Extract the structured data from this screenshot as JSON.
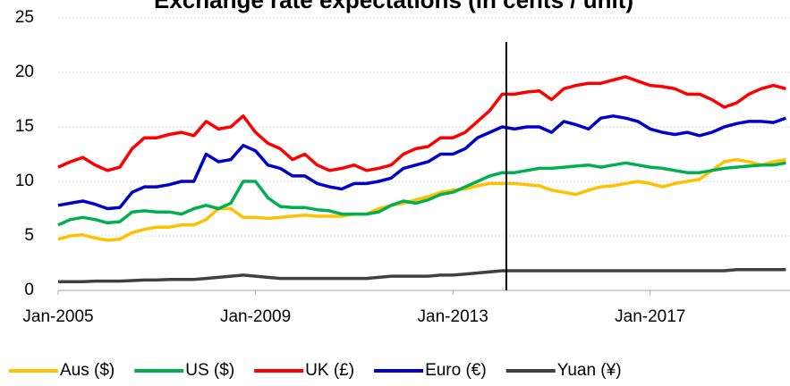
{
  "chart_data": {
    "type": "line",
    "title": "Exchange rate expectations (in cents / unit)",
    "x": [
      "2005-01",
      "2005-04",
      "2005-07",
      "2005-10",
      "2006-01",
      "2006-04",
      "2006-07",
      "2006-10",
      "2007-01",
      "2007-04",
      "2007-07",
      "2007-10",
      "2008-01",
      "2008-04",
      "2008-07",
      "2008-10",
      "2009-01",
      "2009-04",
      "2009-07",
      "2009-10",
      "2010-01",
      "2010-04",
      "2010-07",
      "2010-10",
      "2011-01",
      "2011-04",
      "2011-07",
      "2011-10",
      "2012-01",
      "2012-04",
      "2012-07",
      "2012-10",
      "2013-01",
      "2013-04",
      "2013-07",
      "2013-10",
      "2014-01",
      "2014-04",
      "2014-07",
      "2014-10",
      "2015-01",
      "2015-04",
      "2015-07",
      "2015-10",
      "2016-01",
      "2016-04",
      "2016-07",
      "2016-10",
      "2017-01",
      "2017-04",
      "2017-07",
      "2017-10",
      "2018-01",
      "2018-04",
      "2018-07",
      "2018-10",
      "2019-01",
      "2019-04",
      "2019-07",
      "2019-10"
    ],
    "series": [
      {
        "name": "Aus ($)",
        "color": "#ffc000",
        "values": [
          4.7,
          5,
          5.1,
          4.8,
          4.6,
          4.7,
          5.3,
          5.6,
          5.8,
          5.8,
          6,
          6,
          6.5,
          7.5,
          7.5,
          6.7,
          6.7,
          6.6,
          6.7,
          6.8,
          6.9,
          6.8,
          6.8,
          6.8,
          7,
          7,
          7.5,
          7.8,
          8,
          8.3,
          8.6,
          9,
          9.2,
          9.3,
          9.6,
          9.8,
          9.8,
          9.8,
          9.7,
          9.6,
          9.2,
          9,
          8.8,
          9.2,
          9.5,
          9.6,
          9.8,
          10,
          9.8,
          9.5,
          9.8,
          10,
          10.2,
          11,
          11.8,
          12,
          11.8,
          11.5,
          11.8,
          12
        ]
      },
      {
        "name": "US ($)",
        "color": "#00b050",
        "values": [
          6,
          6.5,
          6.7,
          6.5,
          6.2,
          6.3,
          7.2,
          7.3,
          7.2,
          7.2,
          7,
          7.5,
          7.8,
          7.5,
          8,
          10,
          10,
          8.5,
          7.7,
          7.6,
          7.6,
          7.4,
          7.3,
          7,
          7,
          7,
          7.2,
          7.8,
          8.2,
          8,
          8.3,
          8.8,
          9,
          9.5,
          10,
          10.5,
          10.8,
          10.8,
          11,
          11.2,
          11.2,
          11.3,
          11.4,
          11.5,
          11.3,
          11.5,
          11.7,
          11.5,
          11.3,
          11.2,
          11,
          10.8,
          10.8,
          11,
          11.2,
          11.3,
          11.4,
          11.5,
          11.5,
          11.7
        ]
      },
      {
        "name": "UK (£)",
        "color": "#ff0000",
        "values": [
          11.3,
          11.8,
          12.2,
          11.5,
          11,
          11.3,
          13,
          14,
          14,
          14.3,
          14.5,
          14.2,
          15.5,
          14.8,
          15,
          16,
          14.5,
          13.5,
          13,
          12,
          12.5,
          11.5,
          11,
          11.2,
          11.5,
          11,
          11.2,
          11.5,
          12.5,
          13,
          13.2,
          14,
          14,
          14.5,
          15.5,
          16.5,
          18,
          18,
          18.2,
          18.3,
          17.5,
          18.5,
          18.8,
          19,
          19,
          19.3,
          19.6,
          19.2,
          18.8,
          18.7,
          18.5,
          18,
          18,
          17.5,
          16.8,
          17.2,
          18,
          18.5,
          18.8,
          18.5
        ]
      },
      {
        "name": "Euro (€)",
        "color": "#0000cc",
        "values": [
          7.8,
          8,
          8.2,
          7.9,
          7.5,
          7.6,
          9,
          9.5,
          9.5,
          9.7,
          10,
          10,
          12.5,
          11.8,
          12,
          13.3,
          12.8,
          11.5,
          11.2,
          10.5,
          10.5,
          9.8,
          9.5,
          9.3,
          9.8,
          9.8,
          10,
          10.3,
          11.2,
          11.5,
          11.8,
          12.5,
          12.5,
          13,
          14,
          14.5,
          15,
          14.8,
          15,
          15,
          14.5,
          15.5,
          15.2,
          14.8,
          15.8,
          16,
          15.8,
          15.5,
          14.8,
          14.5,
          14.3,
          14.5,
          14.2,
          14.5,
          15,
          15.3,
          15.5,
          15.5,
          15.4,
          15.8
        ]
      },
      {
        "name": "Yuan (¥)",
        "color": "#404040",
        "values": [
          0.8,
          0.8,
          0.8,
          0.85,
          0.85,
          0.85,
          0.9,
          0.95,
          0.95,
          1,
          1,
          1,
          1.1,
          1.2,
          1.3,
          1.4,
          1.3,
          1.2,
          1.1,
          1.1,
          1.1,
          1.1,
          1.1,
          1.1,
          1.1,
          1.1,
          1.2,
          1.3,
          1.3,
          1.3,
          1.3,
          1.4,
          1.4,
          1.5,
          1.6,
          1.7,
          1.8,
          1.8,
          1.8,
          1.8,
          1.8,
          1.8,
          1.8,
          1.8,
          1.8,
          1.8,
          1.8,
          1.8,
          1.8,
          1.8,
          1.8,
          1.8,
          1.8,
          1.8,
          1.8,
          1.9,
          1.9,
          1.9,
          1.9,
          1.9
        ]
      }
    ],
    "xlim": [
      "2005-01",
      "2019-11"
    ],
    "xticks": [
      {
        "value": "2005-01",
        "label": "Jan-2005"
      },
      {
        "value": "2009-01",
        "label": "Jan-2009"
      },
      {
        "value": "2013-01",
        "label": "Jan-2013"
      },
      {
        "value": "2017-01",
        "label": "Jan-2017"
      }
    ],
    "ylim": [
      0,
      25
    ],
    "yticks": [
      0,
      5,
      10,
      15,
      20,
      25
    ],
    "grid": true,
    "vline": "2014-02",
    "legend": "bottom"
  }
}
